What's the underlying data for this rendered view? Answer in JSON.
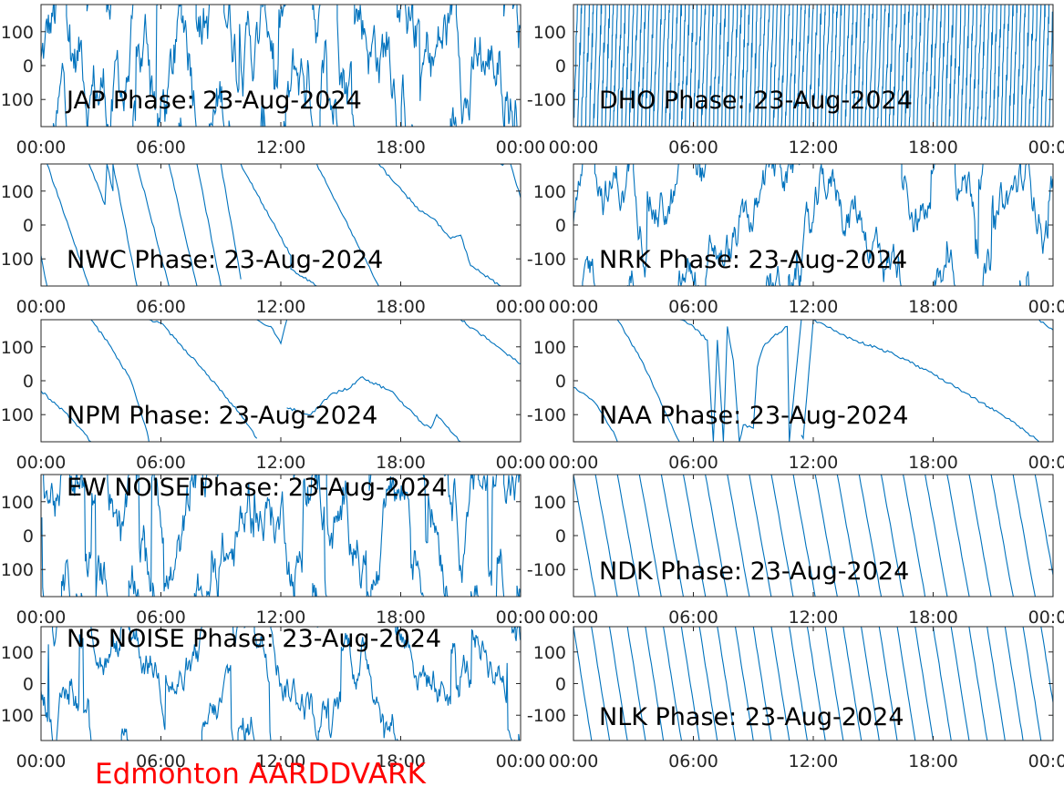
{
  "footer": "Edmonton AARDDVARK",
  "colors": {
    "trace": "#0072bd",
    "footer": "#ff0000",
    "axis": "#262626"
  },
  "chart_data": [
    {
      "type": "line",
      "title": "JAP Phase: 23-Aug-2024",
      "xticks": [
        "00:00",
        "06:00",
        "12:00",
        "18:00",
        "00:00"
      ],
      "yticks": [
        "100",
        "0",
        "100"
      ],
      "ylim": [
        -180,
        180
      ],
      "xlim": [
        0,
        24
      ],
      "grid": false,
      "wrap": "noise",
      "density": 0.9
    },
    {
      "type": "line",
      "title": "DHO Phase: 23-Aug-2024",
      "xticks": [
        "00:00",
        "06:00",
        "12:00",
        "18:00",
        "00:00"
      ],
      "yticks": [
        "100",
        "0",
        "-100"
      ],
      "ylim": [
        -180,
        180
      ],
      "xlim": [
        0,
        24
      ],
      "grid": false,
      "wrap": "fastramp",
      "cycle": 0.2,
      "dir": 1
    },
    {
      "type": "line",
      "title": "NWC Phase: 23-Aug-2024",
      "xticks": [
        "00:00",
        "06:00",
        "12:00",
        "18:00",
        "00:00"
      ],
      "yticks": [
        "100",
        "0",
        "100"
      ],
      "ylim": [
        -180,
        180
      ],
      "xlim": [
        0,
        24
      ],
      "grid": false,
      "segments": [
        [
          0,
          -90
        ],
        [
          0.3,
          -180
        ],
        [
          0.3,
          180
        ],
        [
          2.4,
          -180
        ],
        [
          2.4,
          180
        ],
        [
          3.2,
          60
        ],
        [
          3.3,
          180
        ],
        [
          3.6,
          100
        ],
        [
          3.6,
          180
        ],
        [
          4.8,
          -180
        ],
        [
          4.8,
          180
        ],
        [
          6.4,
          -180
        ],
        [
          6.4,
          180
        ],
        [
          7.8,
          -180
        ],
        [
          7.8,
          180
        ],
        [
          9,
          -180
        ],
        [
          9,
          180
        ],
        [
          10,
          -160
        ],
        [
          10,
          180
        ],
        [
          12.5,
          -90
        ],
        [
          12.5,
          -130
        ],
        [
          13.8,
          -180
        ],
        [
          13.8,
          180
        ],
        [
          16.9,
          -180
        ],
        [
          16.9,
          180
        ],
        [
          17.6,
          130
        ],
        [
          19,
          40
        ],
        [
          19.6,
          20
        ],
        [
          20.5,
          -40
        ],
        [
          21,
          -30
        ],
        [
          21.5,
          -120
        ],
        [
          23,
          -180
        ],
        [
          23,
          180
        ],
        [
          23.5,
          180
        ],
        [
          24,
          80
        ]
      ]
    },
    {
      "type": "line",
      "title": "NRK Phase: 23-Aug-2024",
      "xticks": [
        "00:00",
        "06:00",
        "12:00",
        "18:00",
        "00:00"
      ],
      "yticks": [
        "100",
        "0",
        "-100"
      ],
      "ylim": [
        -180,
        180
      ],
      "xlim": [
        0,
        24
      ],
      "grid": false,
      "wrap": "noise",
      "density": 0.55
    },
    {
      "type": "line",
      "title": "NPM Phase: 23-Aug-2024",
      "xticks": [
        "00:00",
        "06:00",
        "12:00",
        "18:00",
        "00:00"
      ],
      "yticks": [
        "100",
        "0",
        "100"
      ],
      "ylim": [
        -180,
        180
      ],
      "xlim": [
        0,
        24
      ],
      "grid": false,
      "segments": [
        [
          0,
          -30
        ],
        [
          1.5,
          -110
        ],
        [
          2.5,
          -180
        ],
        [
          2.5,
          180
        ],
        [
          3.5,
          100
        ],
        [
          4.5,
          0
        ],
        [
          5.3,
          -150
        ],
        [
          5.4,
          -180
        ],
        [
          5.4,
          180
        ],
        [
          6,
          170
        ],
        [
          8,
          40
        ],
        [
          10,
          -100
        ],
        [
          10.8,
          -170
        ],
        [
          10.8,
          180
        ],
        [
          11.5,
          160
        ],
        [
          12,
          110
        ],
        [
          12.3,
          180
        ],
        [
          12.3,
          -80
        ],
        [
          13.5,
          -100
        ],
        [
          14.5,
          -40
        ],
        [
          15,
          -30
        ],
        [
          15.5,
          -20
        ],
        [
          16,
          10
        ],
        [
          17.5,
          -30
        ],
        [
          19,
          -120
        ],
        [
          19.5,
          -140
        ],
        [
          19.8,
          -100
        ],
        [
          20.5,
          -150
        ],
        [
          21,
          -180
        ],
        [
          21,
          180
        ],
        [
          24,
          50
        ]
      ]
    },
    {
      "type": "line",
      "title": "NAA Phase: 23-Aug-2024",
      "xticks": [
        "00:00",
        "06:00",
        "12:00",
        "18:00",
        "00:00"
      ],
      "yticks": [
        "100",
        "0",
        "-100"
      ],
      "ylim": [
        -180,
        180
      ],
      "xlim": [
        0,
        24
      ],
      "grid": false,
      "segments": [
        [
          0,
          -20
        ],
        [
          1,
          -60
        ],
        [
          2,
          -150
        ],
        [
          2.2,
          -180
        ],
        [
          2.2,
          180
        ],
        [
          3.5,
          50
        ],
        [
          4.5,
          -80
        ],
        [
          5.3,
          -180
        ],
        [
          5.3,
          180
        ],
        [
          6,
          160
        ],
        [
          6.7,
          120
        ],
        [
          7,
          -180
        ],
        [
          7.2,
          120
        ],
        [
          7.5,
          -180
        ],
        [
          7.7,
          160
        ],
        [
          8,
          60
        ],
        [
          8.3,
          -180
        ],
        [
          8.5,
          -130
        ],
        [
          9,
          -140
        ],
        [
          9.2,
          40
        ],
        [
          9.5,
          100
        ],
        [
          10,
          130
        ],
        [
          10.7,
          160
        ],
        [
          10.8,
          -180
        ],
        [
          11.4,
          180
        ],
        [
          11.4,
          -160
        ],
        [
          11.5,
          -170
        ],
        [
          12,
          180
        ],
        [
          14,
          120
        ],
        [
          16,
          80
        ],
        [
          18,
          20
        ],
        [
          20,
          -50
        ],
        [
          22,
          -120
        ],
        [
          23.3,
          -180
        ],
        [
          23.3,
          180
        ],
        [
          24,
          150
        ]
      ]
    },
    {
      "type": "line",
      "title": "EW NOISE Phase: 23-Aug-2024",
      "xticks": [
        "00:00",
        "06:00",
        "12:00",
        "18:00",
        "00:00"
      ],
      "yticks": [
        "100",
        "0",
        "100"
      ],
      "ylim": [
        -180,
        180
      ],
      "xlim": [
        0,
        24
      ],
      "grid": false,
      "wrap": "noise",
      "density": 0.7
    },
    {
      "type": "line",
      "title": "NDK Phase: 23-Aug-2024",
      "xticks": [
        "00:00",
        "06:00",
        "12:00",
        "18:00",
        "00:00"
      ],
      "yticks": [
        "100",
        "0",
        "-100"
      ],
      "ylim": [
        -180,
        180
      ],
      "xlim": [
        0,
        24
      ],
      "grid": false,
      "wrap": "sawtooth",
      "cycle": 1.1,
      "dir": -1
    },
    {
      "type": "line",
      "title": "NS NOISE Phase: 23-Aug-2024",
      "xticks": [
        "00:00",
        "06:00",
        "12:00",
        "18:00",
        "00:00"
      ],
      "yticks": [
        "100",
        "0",
        "100"
      ],
      "ylim": [
        -180,
        180
      ],
      "xlim": [
        0,
        24
      ],
      "grid": false,
      "wrap": "noise",
      "density": 0.5
    },
    {
      "type": "line",
      "title": "NLK Phase: 23-Aug-2024",
      "xticks": [
        "00:00",
        "06:00",
        "12:00",
        "18:00",
        "00:00"
      ],
      "yticks": [
        "100",
        "0",
        "-100"
      ],
      "ylim": [
        -180,
        180
      ],
      "xlim": [
        0,
        24
      ],
      "grid": false,
      "wrap": "sawtooth",
      "cycle": 0.9,
      "dir": -1
    }
  ]
}
